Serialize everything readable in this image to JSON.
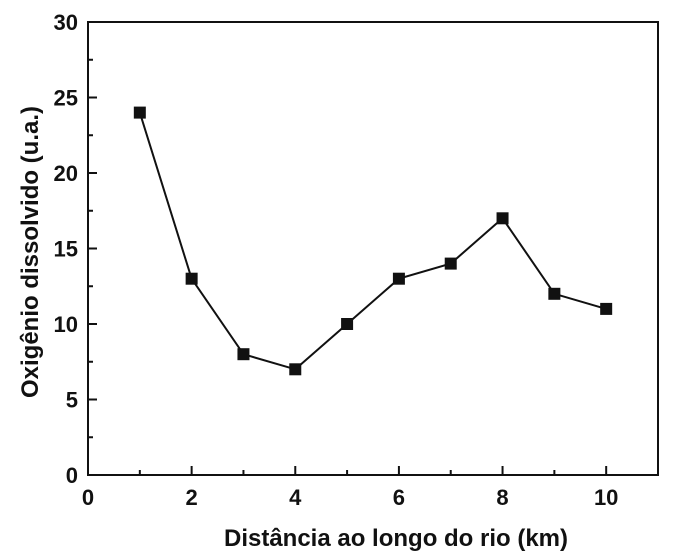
{
  "chart_data": {
    "type": "line",
    "title": "",
    "xlabel": "Distância ao longo do rio (km)",
    "ylabel": "Oxigênio dissolvido (u.a.)",
    "xlim": [
      0,
      11
    ],
    "ylim": [
      0,
      30
    ],
    "x_ticks": [
      0,
      2,
      4,
      6,
      8,
      10
    ],
    "x_tick_labels": [
      "0",
      "2",
      "4",
      "6",
      "8",
      "10"
    ],
    "y_ticks": [
      0,
      5,
      10,
      15,
      20,
      25,
      30
    ],
    "y_tick_labels": [
      "0",
      "5",
      "10",
      "15",
      "20",
      "25",
      "30"
    ],
    "grid": false,
    "legend": "none",
    "marker": "square",
    "series": [
      {
        "x": [
          1,
          2,
          3,
          4,
          5,
          6,
          7,
          8,
          9,
          10
        ],
        "y": [
          24,
          13,
          8,
          7,
          10,
          13,
          14,
          17,
          12,
          11
        ]
      }
    ],
    "colors": {
      "line": "#111111",
      "marker": "#111111",
      "axis": "#111111"
    }
  }
}
